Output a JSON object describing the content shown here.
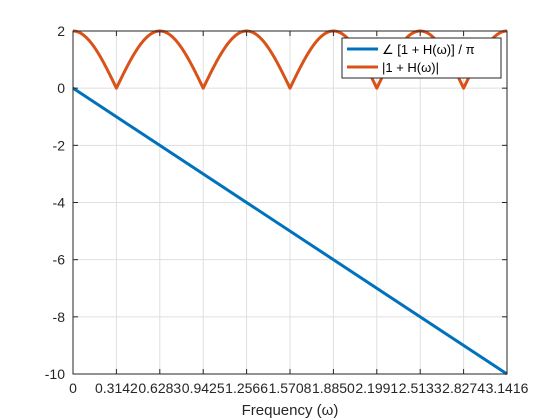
{
  "chart_data": {
    "type": "line",
    "title": "",
    "xlabel": "Frequency (ω)",
    "ylabel": "",
    "xlim": [
      0,
      3.1416
    ],
    "ylim": [
      -10,
      2
    ],
    "grid": true,
    "legend_position": "top-right",
    "x_ticks": [
      "0",
      "0.3142",
      "0.6283",
      "0.9425",
      "1.2566",
      "1.5708",
      "1.8850",
      "2.1991",
      "2.5133",
      "2.8274",
      "3.1416"
    ],
    "x_tick_values": [
      0,
      0.3142,
      0.6283,
      0.9425,
      1.2566,
      1.5708,
      1.885,
      2.1991,
      2.5133,
      2.8274,
      3.1416
    ],
    "y_ticks": [
      "2",
      "0",
      "-2",
      "-4",
      "-6",
      "-8",
      "-10"
    ],
    "y_tick_values": [
      2,
      0,
      -2,
      -4,
      -6,
      -8,
      -10
    ],
    "series": [
      {
        "name": "∠ [1 + H(ω)] / π",
        "color": "#0072bd",
        "x": [
          0,
          3.1416
        ],
        "y": [
          0,
          -10
        ]
      },
      {
        "name": "|1 + H(ω)|",
        "color": "#d95319",
        "x": [
          0,
          0.1571,
          0.3142,
          0.4712,
          0.6283,
          0.7854,
          0.9425,
          1.0996,
          1.2566,
          1.4137,
          1.5708,
          1.7279,
          1.885,
          2.042,
          2.1991,
          2.3562,
          2.5133,
          2.6704,
          2.8274,
          2.9845,
          3.1416
        ],
        "y": [
          2,
          1.414,
          0,
          1.414,
          2,
          1.414,
          0,
          1.414,
          2,
          1.414,
          0,
          1.414,
          2,
          1.414,
          0,
          1.414,
          2,
          1.414,
          0,
          1.414,
          2
        ]
      }
    ]
  }
}
